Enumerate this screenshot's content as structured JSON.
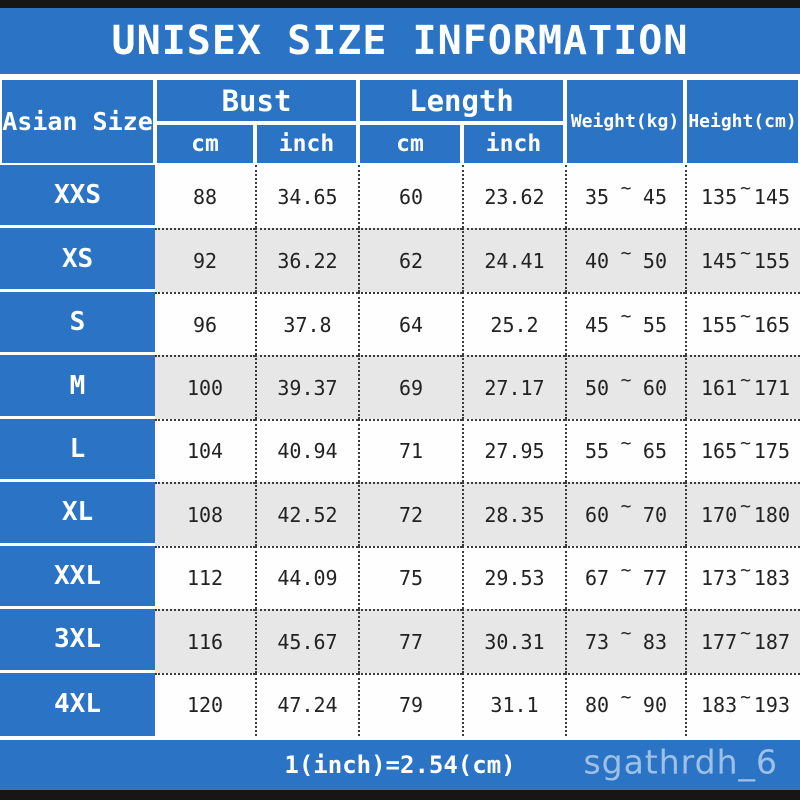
{
  "title": "UNISEX SIZE INFORMATION",
  "table": {
    "size_column_header": "Asian Size",
    "bust_label": "Bust",
    "length_label": "Length",
    "unit_cm": "cm",
    "unit_inch": "inch",
    "weight_label": "Weight(kg)",
    "height_label": "Height(cm)",
    "tilde": "~",
    "rows": [
      {
        "size": "XXS",
        "bust_cm": "88",
        "bust_inch": "34.65",
        "length_cm": "60",
        "length_inch": "23.62",
        "weight_min": "35",
        "weight_max": "45",
        "height_min": "135",
        "height_max": "145"
      },
      {
        "size": "XS",
        "bust_cm": "92",
        "bust_inch": "36.22",
        "length_cm": "62",
        "length_inch": "24.41",
        "weight_min": "40",
        "weight_max": "50",
        "height_min": "145",
        "height_max": "155"
      },
      {
        "size": "S",
        "bust_cm": "96",
        "bust_inch": "37.8",
        "length_cm": "64",
        "length_inch": "25.2",
        "weight_min": "45",
        "weight_max": "55",
        "height_min": "155",
        "height_max": "165"
      },
      {
        "size": "M",
        "bust_cm": "100",
        "bust_inch": "39.37",
        "length_cm": "69",
        "length_inch": "27.17",
        "weight_min": "50",
        "weight_max": "60",
        "height_min": "161",
        "height_max": "171"
      },
      {
        "size": "L",
        "bust_cm": "104",
        "bust_inch": "40.94",
        "length_cm": "71",
        "length_inch": "27.95",
        "weight_min": "55",
        "weight_max": "65",
        "height_min": "165",
        "height_max": "175"
      },
      {
        "size": "XL",
        "bust_cm": "108",
        "bust_inch": "42.52",
        "length_cm": "72",
        "length_inch": "28.35",
        "weight_min": "60",
        "weight_max": "70",
        "height_min": "170",
        "height_max": "180"
      },
      {
        "size": "XXL",
        "bust_cm": "112",
        "bust_inch": "44.09",
        "length_cm": "75",
        "length_inch": "29.53",
        "weight_min": "67",
        "weight_max": "77",
        "height_min": "173",
        "height_max": "183"
      },
      {
        "size": "3XL",
        "bust_cm": "116",
        "bust_inch": "45.67",
        "length_cm": "77",
        "length_inch": "30.31",
        "weight_min": "73",
        "weight_max": "83",
        "height_min": "177",
        "height_max": "187"
      },
      {
        "size": "4XL",
        "bust_cm": "120",
        "bust_inch": "47.24",
        "length_cm": "79",
        "length_inch": "31.1",
        "weight_min": "80",
        "weight_max": "90",
        "height_min": "183",
        "height_max": "193"
      }
    ]
  },
  "footer": {
    "note": "1(inch)=2.54(cm)",
    "watermark": "sgathrdh_6"
  },
  "colors": {
    "blue": "#2b74c5",
    "row_odd": "#fefefe",
    "row_even": "#e7e7e7",
    "bar_black": "#161616"
  }
}
